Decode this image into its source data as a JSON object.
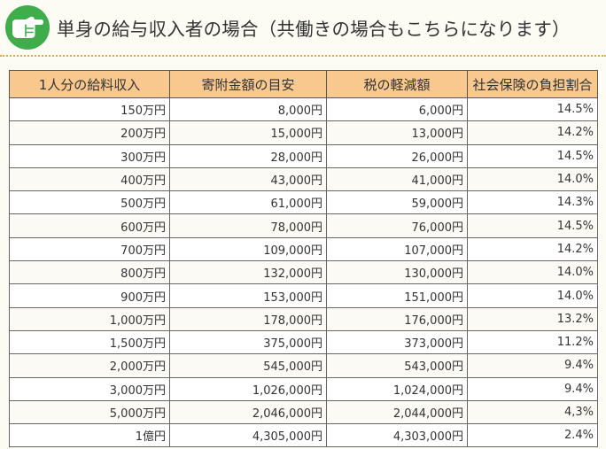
{
  "header": {
    "title": "単身の給与収入者の場合（共働きの場合もこちらになります）",
    "badge_icon": "pointing-hand-icon",
    "badge_color": "#3fad4b"
  },
  "table": {
    "header_color": "#f9c88e",
    "columns": [
      "1人分の給料収入",
      "寄附金額の目安",
      "税の軽減額",
      "社会保険の負担割合"
    ],
    "rows": [
      [
        "150万円",
        "8,000円",
        "6,000円",
        "14.5%"
      ],
      [
        "200万円",
        "15,000円",
        "13,000円",
        "14.2%"
      ],
      [
        "300万円",
        "28,000円",
        "26,000円",
        "14.5%"
      ],
      [
        "400万円",
        "43,000円",
        "41,000円",
        "14.0%"
      ],
      [
        "500万円",
        "61,000円",
        "59,000円",
        "14.3%"
      ],
      [
        "600万円",
        "78,000円",
        "76,000円",
        "14.5%"
      ],
      [
        "700万円",
        "109,000円",
        "107,000円",
        "14.2%"
      ],
      [
        "800万円",
        "132,000円",
        "130,000円",
        "14.0%"
      ],
      [
        "900万円",
        "153,000円",
        "151,000円",
        "14.0%"
      ],
      [
        "1,000万円",
        "178,000円",
        "176,000円",
        "13.2%"
      ],
      [
        "1,500万円",
        "375,000円",
        "373,000円",
        "11.2%"
      ],
      [
        "2,000万円",
        "545,000円",
        "543,000円",
        "9.4%"
      ],
      [
        "3,000万円",
        "1,026,000円",
        "1,024,000円",
        "9.4%"
      ],
      [
        "5,000万円",
        "2,046,000円",
        "2,044,000円",
        "4,3%"
      ],
      [
        "1億円",
        "4,305,000円",
        "4,303,000円",
        "2.4%"
      ]
    ]
  }
}
